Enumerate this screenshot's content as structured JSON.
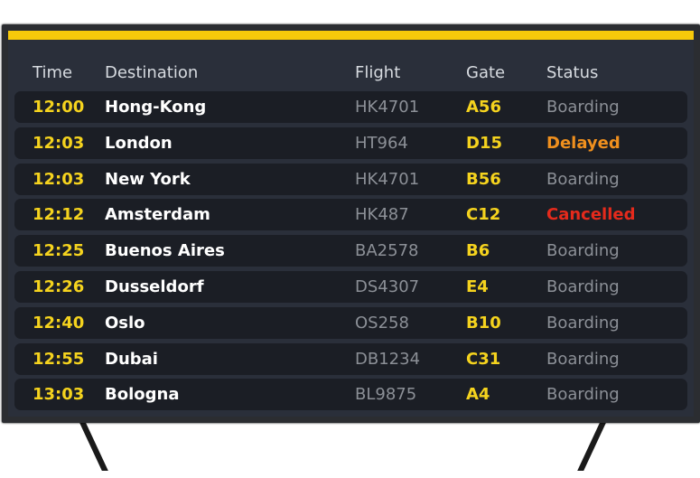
{
  "colors": {
    "accent": "#f7c90a",
    "boarding": "#8c9097",
    "delayed": "#f0901e",
    "cancelled": "#e52a1c"
  },
  "header": {
    "time": "Time",
    "destination": "Destination",
    "flight": "Flight",
    "gate": "Gate",
    "status": "Status"
  },
  "rows": [
    {
      "time": "12:00",
      "destination": "Hong-Kong",
      "flight": "HK4701",
      "gate": "A56",
      "status": "Boarding",
      "state": "boarding"
    },
    {
      "time": "12:03",
      "destination": "London",
      "flight": "HT964",
      "gate": "D15",
      "status": "Delayed",
      "state": "delayed"
    },
    {
      "time": "12:03",
      "destination": "New York",
      "flight": "HK4701",
      "gate": "B56",
      "status": "Boarding",
      "state": "boarding"
    },
    {
      "time": "12:12",
      "destination": "Amsterdam",
      "flight": "HK487",
      "gate": "C12",
      "status": "Cancelled",
      "state": "cancelled"
    },
    {
      "time": "12:25",
      "destination": "Buenos Aires",
      "flight": "BA2578",
      "gate": "B6",
      "status": "Boarding",
      "state": "boarding"
    },
    {
      "time": "12:26",
      "destination": "Dusseldorf",
      "flight": "DS4307",
      "gate": "E4",
      "status": "Boarding",
      "state": "boarding"
    },
    {
      "time": "12:40",
      "destination": "Oslo",
      "flight": "OS258",
      "gate": "B10",
      "status": "Boarding",
      "state": "boarding"
    },
    {
      "time": "12:55",
      "destination": "Dubai",
      "flight": "DB1234",
      "gate": "C31",
      "status": "Boarding",
      "state": "boarding"
    },
    {
      "time": "13:03",
      "destination": "Bologna",
      "flight": "BL9875",
      "gate": "A4",
      "status": "Boarding",
      "state": "boarding"
    }
  ]
}
